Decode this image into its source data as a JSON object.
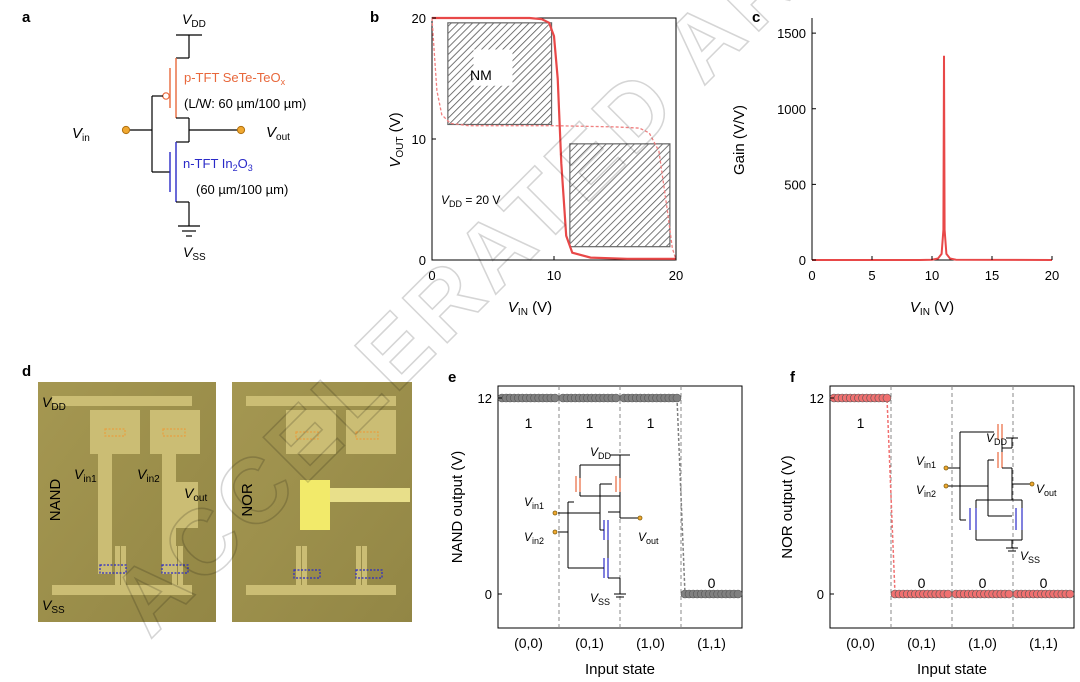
{
  "panel_labels": {
    "a": "a",
    "b": "b",
    "c": "c",
    "d": "d",
    "e": "e",
    "f": "f"
  },
  "watermark": "ACCELERATED ARTICLE PREVIEW",
  "panel_a": {
    "vdd_main": "V",
    "vdd_sub": "DD",
    "vss_main": "V",
    "vss_sub": "SS",
    "vin_main": "V",
    "vin_sub": "in",
    "vout_main": "V",
    "vout_sub": "out",
    "ptft_line1": "p-TFT SeTe-TeO",
    "ptft_line1_sub": "x",
    "ptft_line2": "(L/W: 60 µm/100 µm)",
    "ntft_line1_a": "n-TFT In",
    "ntft_sub1": "2",
    "ntft_line1_b": "O",
    "ntft_sub2": "3",
    "ntft_line2": "(60 µm/100 µm)",
    "colors": {
      "ptft": "#e8683c",
      "ntft": "#2a2ac8",
      "node": "#f0a830"
    }
  },
  "chart_data": [
    {
      "panel": "b",
      "type": "line",
      "xlabel": "V",
      "xlabel_sub": "IN",
      "xlabel_unit": " (V)",
      "ylabel": "V",
      "ylabel_sub": "OUT",
      "ylabel_unit": " (V)",
      "xlim": [
        0,
        20
      ],
      "ylim": [
        0,
        20
      ],
      "xticks": [
        "0",
        "10",
        "20"
      ],
      "yticks": [
        "0",
        "10",
        "20"
      ],
      "annotation_vdd": "V",
      "annotation_vdd_sub": "DD",
      "annotation_vdd_rest": " = 20 V",
      "nm_label": "NM",
      "series": [
        {
          "style": "solid",
          "color": "#e84848",
          "x": [
            0,
            5,
            8,
            9,
            9.6,
            10,
            10.3,
            10.6,
            11,
            11.5,
            13,
            16,
            20
          ],
          "y": [
            20,
            20,
            20,
            19.9,
            19.6,
            18.5,
            15,
            8,
            2,
            0.6,
            0.2,
            0.1,
            0.1
          ]
        },
        {
          "style": "dashed",
          "color": "#f08080",
          "x": [
            0,
            0.2,
            0.4,
            0.8,
            1.5,
            3,
            5,
            10,
            15,
            17,
            17.8,
            18.6,
            19.3,
            19.7,
            20
          ],
          "y": [
            20,
            17,
            14,
            12,
            11.3,
            11.1,
            11.1,
            11.1,
            11.0,
            10.9,
            10.5,
            9,
            4,
            1,
            0
          ]
        }
      ],
      "nm_boxes": [
        {
          "x0": 1.3,
          "x1": 9.8,
          "y0": 11.2,
          "y1": 19.6
        },
        {
          "x0": 11.3,
          "x1": 19.5,
          "y0": 1.1,
          "y1": 9.6
        }
      ]
    },
    {
      "panel": "c",
      "type": "line",
      "xlabel": "V",
      "xlabel_sub": "IN",
      "xlabel_unit": " (V)",
      "ylabel": "Gain (V/V)",
      "xlim": [
        0,
        20
      ],
      "ylim": [
        0,
        1600
      ],
      "xticks": [
        "0",
        "5",
        "10",
        "15",
        "20"
      ],
      "yticks": [
        "0",
        "500",
        "1000",
        "1500"
      ],
      "series": [
        {
          "color": "#e84848",
          "x": [
            0,
            9,
            10,
            10.5,
            10.8,
            10.95,
            11.0,
            11.05,
            11.2,
            11.5,
            12,
            20
          ],
          "y": [
            0,
            0,
            2,
            10,
            40,
            200,
            1350,
            200,
            40,
            10,
            2,
            0
          ]
        }
      ]
    },
    {
      "panel": "e",
      "type": "scatter",
      "ylabel": "NAND output (V)",
      "xlabel": "Input state",
      "ylim": [
        0,
        12
      ],
      "yticks": [
        "0",
        "12"
      ],
      "categories": [
        "(0,0)",
        "(0,1)",
        "(1,0)",
        "(1,1)"
      ],
      "state_values": [
        "1",
        "1",
        "1",
        "0"
      ],
      "levels": [
        12,
        12,
        12,
        0
      ],
      "points_per_state": 14,
      "color": "#808080"
    },
    {
      "panel": "f",
      "type": "scatter",
      "ylabel": "NOR output (V)",
      "xlabel": "Input state",
      "ylim": [
        0,
        12
      ],
      "yticks": [
        "0",
        "12"
      ],
      "categories": [
        "(0,0)",
        "(0,1)",
        "(1,0)",
        "(1,1)"
      ],
      "state_values": [
        "1",
        "0",
        "0",
        "0"
      ],
      "levels": [
        12,
        0,
        0,
        0
      ],
      "points_per_state": 14,
      "color": "#f07070"
    }
  ],
  "panel_d": {
    "nand_label": "NAND",
    "nor_label": "NOR",
    "vdd_main": "V",
    "vdd_sub": "DD",
    "vss_main": "V",
    "vss_sub": "SS",
    "vin1_main": "V",
    "vin1_sub": "in1",
    "vin2_main": "V",
    "vin2_sub": "in2",
    "vout_main": "V",
    "vout_sub": "out"
  },
  "inset_e": {
    "vdd_main": "V",
    "vdd_sub": "DD",
    "vin1_main": "V",
    "vin1_sub": "in1",
    "vin2_main": "V",
    "vin2_sub": "in2",
    "vout_main": "V",
    "vout_sub": "out",
    "vss_main": "V",
    "vss_sub": "SS"
  },
  "inset_f": {
    "vdd_main": "V",
    "vdd_sub": "DD",
    "vin1_main": "V",
    "vin1_sub": "in1",
    "vin2_main": "V",
    "vin2_sub": "in2",
    "vout_main": "V",
    "vout_sub": "out",
    "vss_main": "V",
    "vss_sub": "SS"
  }
}
